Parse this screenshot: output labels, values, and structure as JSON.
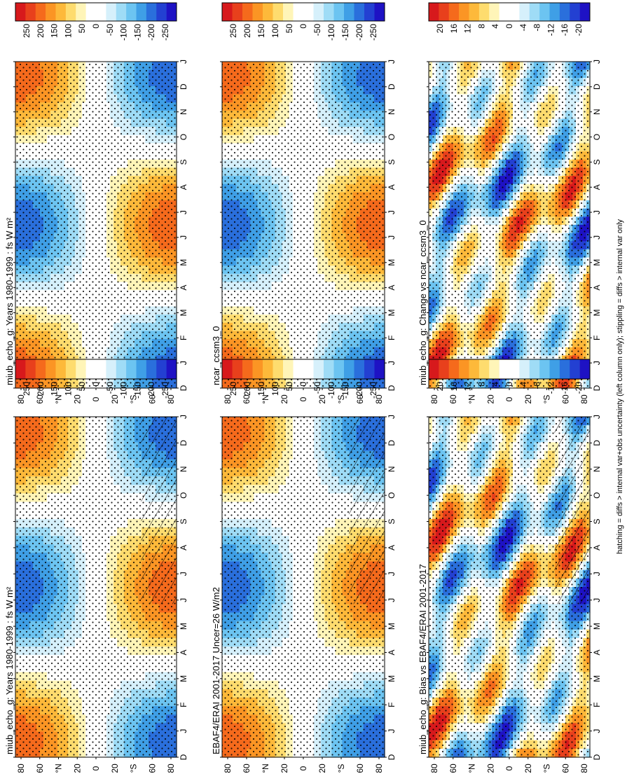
{
  "chart_data": {
    "type": "heatmap",
    "orientation": "rotated-90-ccw",
    "footnote": "hatching = diffs > internal var+obs uncertainty (left column only); stippling = diffs > internal var only",
    "x_ticks": [
      "D",
      "J",
      "F",
      "M",
      "A",
      "M",
      "J",
      "J",
      "A",
      "S",
      "O",
      "N",
      "D",
      "J"
    ],
    "y_ticks": [
      "80",
      "60",
      "°N",
      "20",
      "0",
      "20",
      "°S",
      "60",
      "80"
    ],
    "colorbars": {
      "abs": {
        "labels": [
          "250",
          "200",
          "150",
          "100",
          "50",
          "0",
          "-50",
          "-100",
          "-150",
          "-200",
          "-250"
        ],
        "colors": [
          "#d7191c",
          "#e8401c",
          "#f56a1c",
          "#fb9524",
          "#fdb93a",
          "#fedc6e",
          "#fff5b8",
          "#ffffff",
          "#ffffff",
          "#d6f0fb",
          "#9fdcf6",
          "#6cc4f1",
          "#3f9fe6",
          "#2a6fdc",
          "#2340d2",
          "#1e12c4"
        ]
      },
      "diff": {
        "labels": [
          "20",
          "16",
          "12",
          "8",
          "4",
          "0",
          "-4",
          "-8",
          "-12",
          "-16",
          "-20"
        ],
        "colors": [
          "#d7191c",
          "#e8401c",
          "#f56a1c",
          "#fb9524",
          "#fdb93a",
          "#fedc6e",
          "#fff5b8",
          "#ffffff",
          "#ffffff",
          "#d6f0fb",
          "#9fdcf6",
          "#6cc4f1",
          "#3f9fe6",
          "#2a6fdc",
          "#2340d2",
          "#1e12c4"
        ]
      }
    },
    "panels": [
      {
        "id": "p1",
        "title": "miub_echo_g: Years 1980-1999 : fs W m²",
        "kind": "abs",
        "hatch": true
      },
      {
        "id": "p2",
        "title": "EBAF4/ERAI 2001-2017 Uncer=26 W/m2",
        "kind": "abs",
        "hatch": true
      },
      {
        "id": "p3",
        "title": "miub_echo_g: Bias vs EBAF4/ERAI 2001-2017",
        "kind": "diff",
        "hatch": true
      },
      {
        "id": "p4",
        "title": "miub_echo_g: Years 1980-1999 : fs W m²",
        "kind": "abs",
        "hatch": false
      },
      {
        "id": "p5",
        "title": "ncar_ccsm3_0",
        "kind": "abs",
        "hatch": false
      },
      {
        "id": "p6",
        "title": "miub_echo_g: Change vs ncar_ccsm3_0",
        "kind": "diff",
        "hatch": false
      }
    ]
  }
}
